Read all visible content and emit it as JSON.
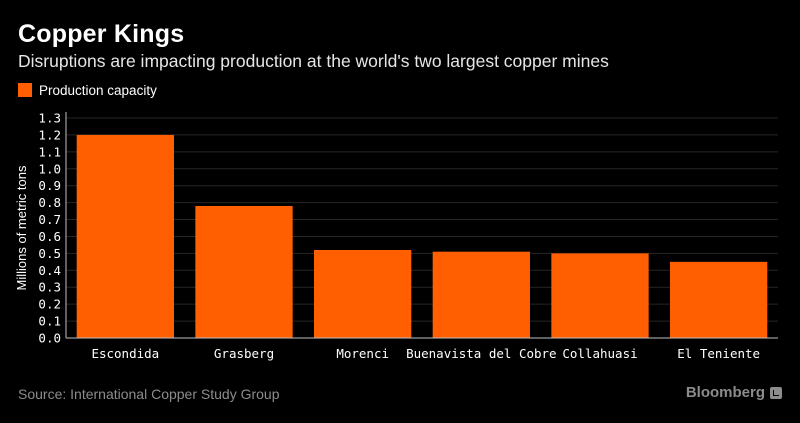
{
  "header": {
    "title": "Copper Kings",
    "subtitle": "Disruptions are impacting production at the world's two largest copper mines"
  },
  "legend": {
    "label": "Production capacity",
    "swatch_color": "#ff5f00"
  },
  "footer": {
    "source": "Source: International Copper Study Group",
    "brand": "Bloomberg",
    "brand_icon": "bloomberg-terminal-icon"
  },
  "colors": {
    "background": "#000000",
    "bar": "#ff5f00",
    "grid": "#262626",
    "muted_text": "#8c8c8c"
  },
  "chart_data": {
    "type": "bar",
    "categories": [
      "Escondida",
      "Grasberg",
      "Morenci",
      "Buenavista del Cobre",
      "Collahuasi",
      "El Teniente"
    ],
    "series": [
      {
        "name": "Production capacity",
        "values": [
          1.2,
          0.78,
          0.52,
          0.51,
          0.5,
          0.45
        ]
      }
    ],
    "title": "Copper Kings",
    "subtitle": "Disruptions are impacting production at the world's two largest copper mines",
    "xlabel": "",
    "ylabel": "Millions of metric tons",
    "ylim": [
      0,
      1.3
    ],
    "yticks": [
      "0.0",
      "0.1",
      "0.2",
      "0.3",
      "0.4",
      "0.5",
      "0.6",
      "0.7",
      "0.8",
      "0.9",
      "1.0",
      "1.1",
      "1.2",
      "1.3"
    ],
    "grid": true,
    "legend_position": "top-left"
  }
}
